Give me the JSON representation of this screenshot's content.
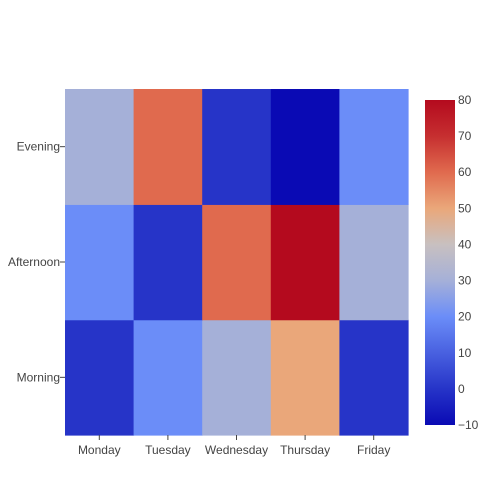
{
  "chart_data": {
    "type": "heatmap",
    "x": [
      "Monday",
      "Tuesday",
      "Wednesday",
      "Thursday",
      "Friday"
    ],
    "y": [
      "Morning",
      "Afternoon",
      "Evening"
    ],
    "z": [
      [
        0,
        20,
        30,
        50,
        0
      ],
      [
        20,
        0,
        60,
        80,
        30
      ],
      [
        30,
        60,
        0,
        -10,
        20
      ]
    ],
    "zmin": -10,
    "zmax": 80,
    "colorscale": "coolwarm",
    "colorbar": {
      "ticks": [
        -10,
        0,
        10,
        20,
        30,
        40,
        50,
        60,
        70,
        80
      ],
      "tick_labels": [
        "−10",
        "0",
        "10",
        "20",
        "30",
        "40",
        "50",
        "60",
        "70",
        "80"
      ]
    },
    "title": "",
    "xlabel": "",
    "ylabel": "",
    "grid": false
  },
  "colors": {
    "background": "#ffffff",
    "text": "#444444",
    "scale": [
      {
        "t": 0.0,
        "c": "#0a0ab4"
      },
      {
        "t": 0.111,
        "c": "#2634c8"
      },
      {
        "t": 0.333,
        "c": "#6b8df8"
      },
      {
        "t": 0.444,
        "c": "#a5b0d8"
      },
      {
        "t": 0.556,
        "c": "#c8c0c0"
      },
      {
        "t": 0.667,
        "c": "#eaa77a"
      },
      {
        "t": 0.778,
        "c": "#e06a4e"
      },
      {
        "t": 0.889,
        "c": "#c62f30"
      },
      {
        "t": 1.0,
        "c": "#b40a1e"
      }
    ]
  }
}
